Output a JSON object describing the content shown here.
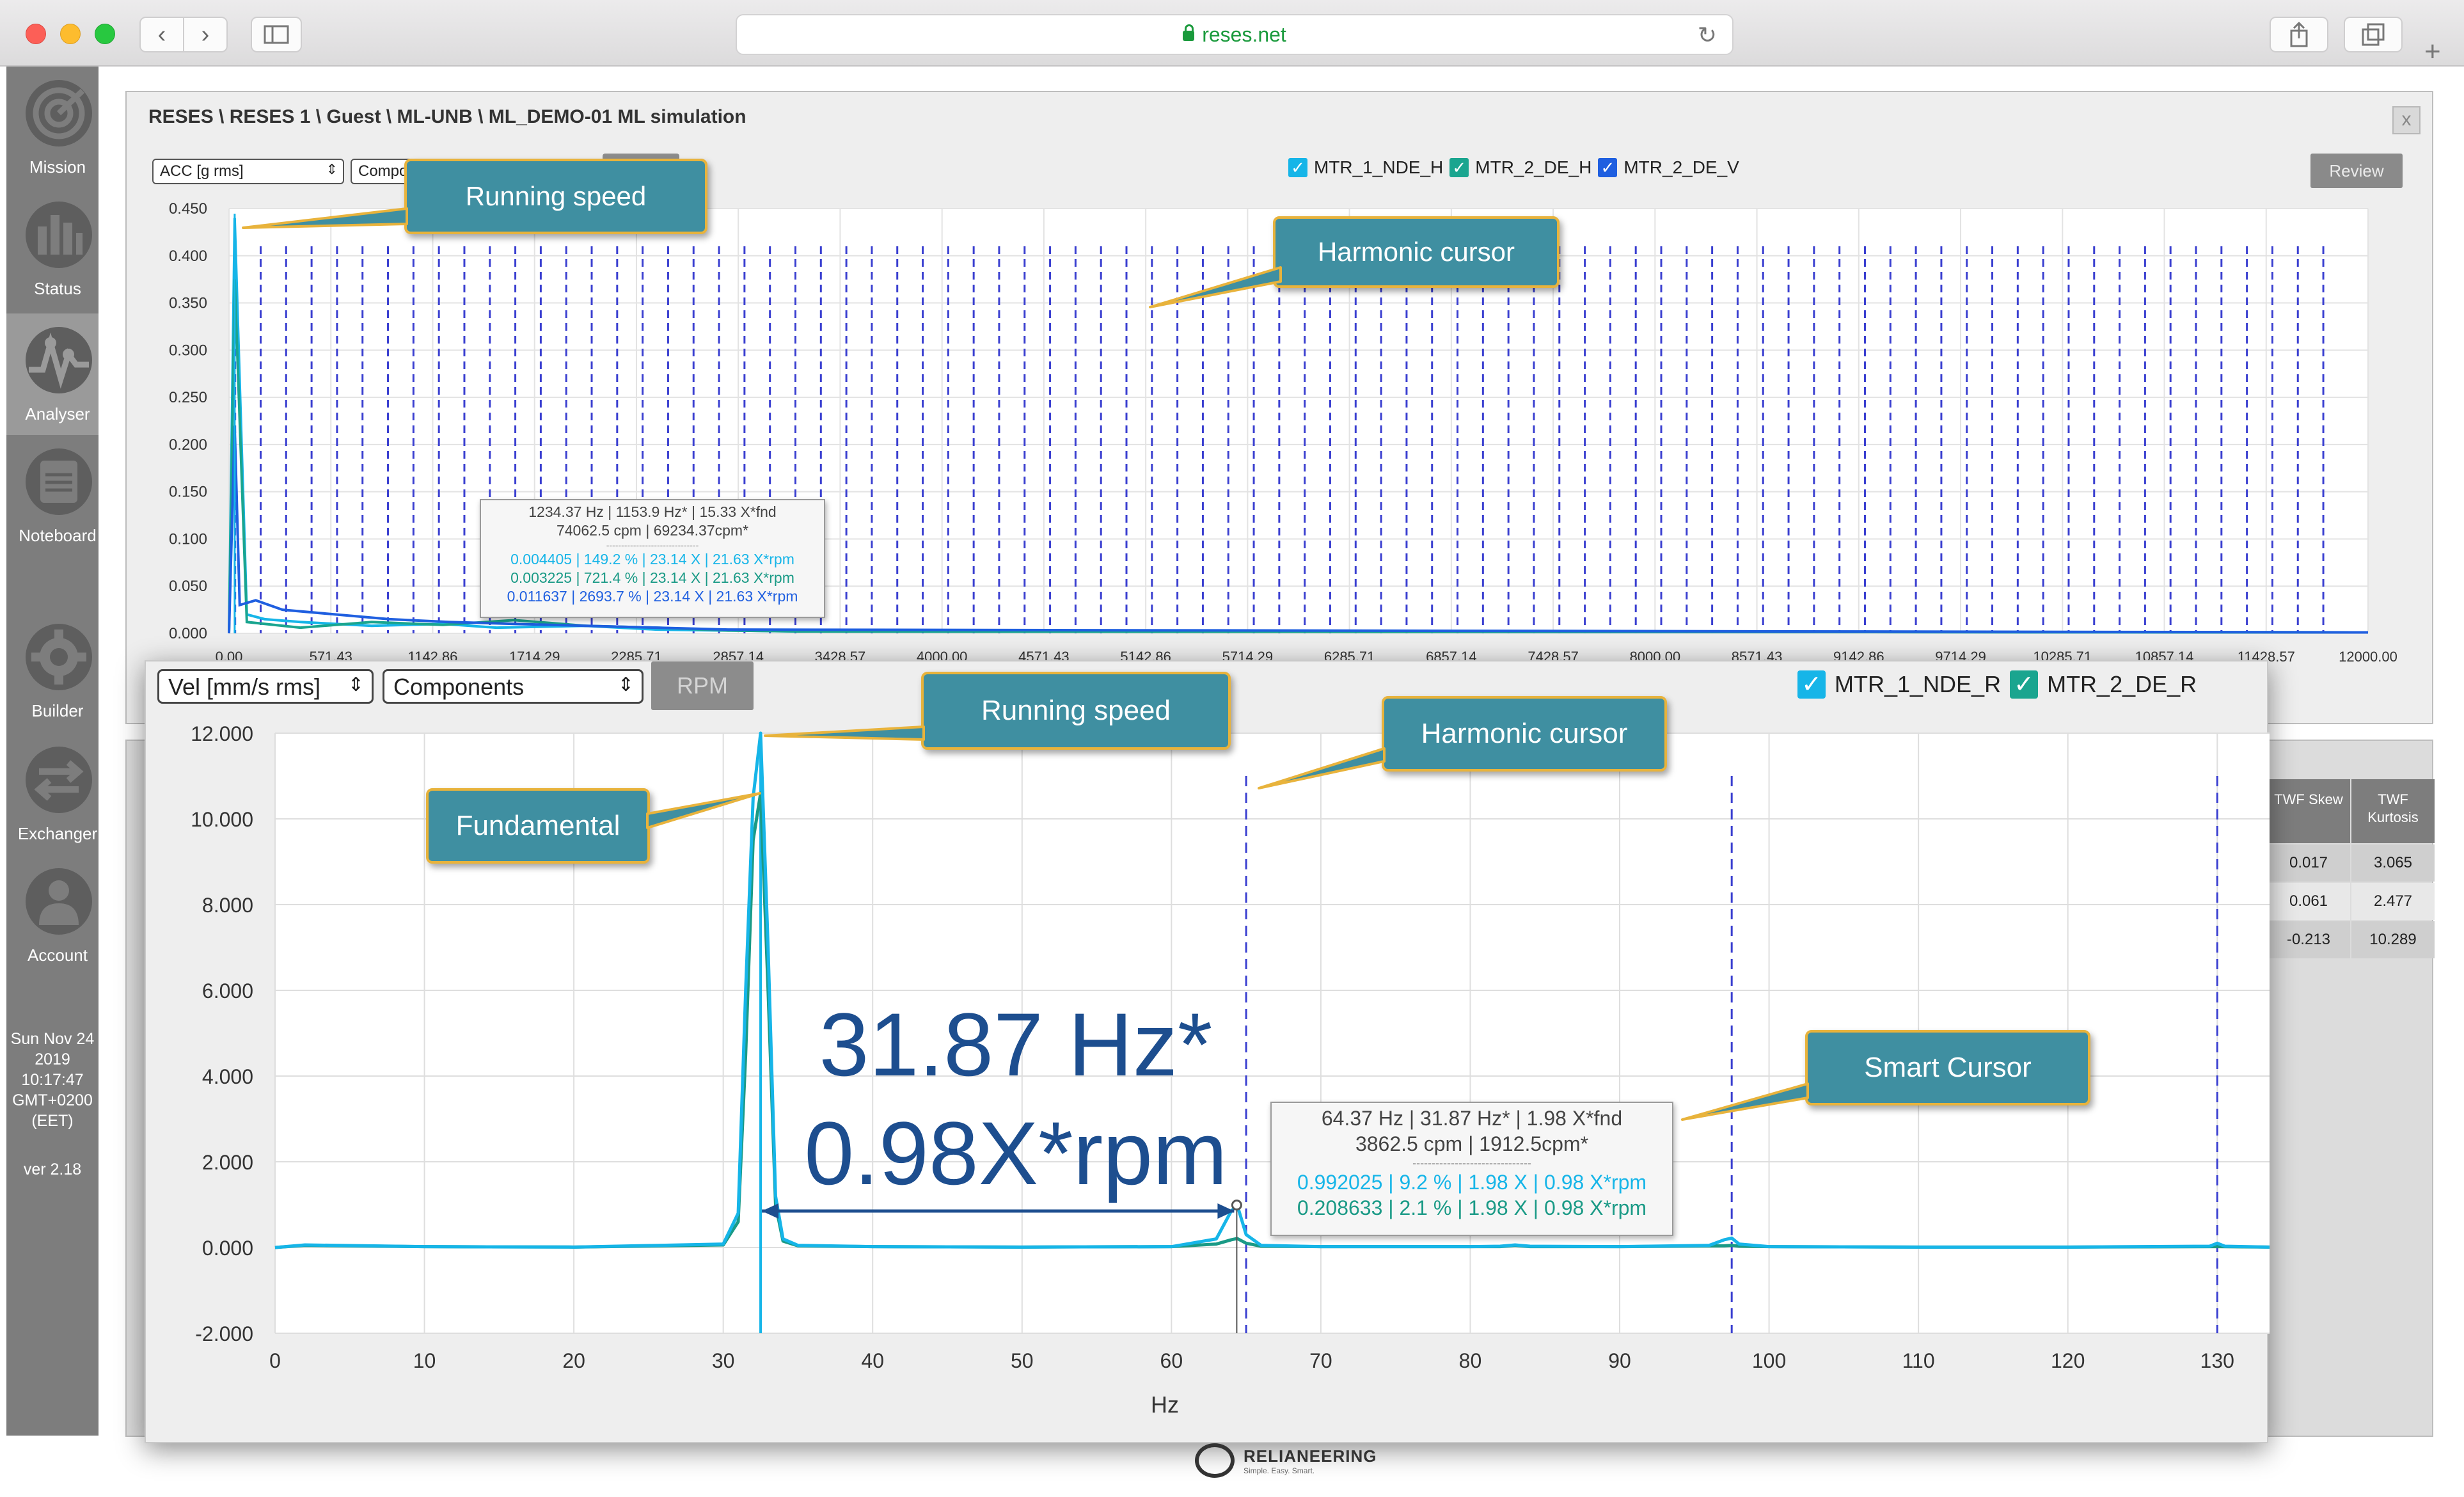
{
  "browser": {
    "url": "reses.net"
  },
  "sidebar": {
    "items": [
      {
        "label": "Mission",
        "icon": "target-icon"
      },
      {
        "label": "Status",
        "icon": "bar-chart-icon"
      },
      {
        "label": "Analyser",
        "icon": "waveform-icon",
        "active": true
      },
      {
        "label": "Noteboard",
        "icon": "notebook-icon"
      },
      {
        "label": "Builder",
        "icon": "gear-icon"
      },
      {
        "label": "Exchanger",
        "icon": "exchange-arrows-icon"
      },
      {
        "label": "Account",
        "icon": "user-icon"
      }
    ],
    "datetime": [
      "Sun Nov 24",
      "2019",
      "10:17:47",
      "GMT+0200",
      "(EET)"
    ],
    "version": "ver 2.18"
  },
  "background_panel": {
    "breadcrumb": "RESES \\ RESES 1 \\ Guest \\ ML-UNB \\ ML_DEMO-01 ML simulation",
    "close_label": "x",
    "unit_select": "ACC [g rms]",
    "mode_select": "Components",
    "rpm_label": "RPM",
    "review_label": "Review",
    "legend": [
      {
        "name": "MTR_1_NDE_H",
        "color": "#16b5e8"
      },
      {
        "name": "MTR_2_DE_H",
        "color": "#1aa58f"
      },
      {
        "name": "MTR_2_DE_V",
        "color": "#1f5fe0"
      }
    ],
    "tooltip": {
      "line1": "1234.37 Hz | 1153.9 Hz* | 15.33 X*fnd",
      "line2": "74062.5 cpm | 69234.37cpm*",
      "separator": "-------------------------------",
      "rows": [
        {
          "text": "0.004405 | 149.2 % | 23.14 X | 21.63 X*rpm",
          "color": "#16b5e8"
        },
        {
          "text": "0.003225 | 721.4 % | 23.14 X | 21.63 X*rpm",
          "color": "#1a9a86"
        },
        {
          "text": "0.011637 | 2693.7 % | 23.14 X | 21.63 X*rpm",
          "color": "#1f5fe0"
        }
      ]
    },
    "table": {
      "headers": [
        "TWF Skew",
        "TWF Kurtosis"
      ],
      "rows": [
        [
          "0.017",
          "3.065"
        ],
        [
          "0.061",
          "2.477"
        ],
        [
          "-0.213",
          "10.289"
        ]
      ]
    }
  },
  "foreground_panel": {
    "unit_select": "Vel [mm/s rms]",
    "mode_select": "Components",
    "rpm_label": "RPM",
    "legend": [
      {
        "name": "MTR_1_NDE_R",
        "color": "#16b5e8"
      },
      {
        "name": "MTR_2_DE_R",
        "color": "#1aa58f"
      }
    ],
    "tooltip": {
      "line1": "64.37 Hz | 31.87 Hz* | 1.98 X*fnd",
      "line2": "3862.5 cpm | 1912.5cpm*",
      "separator": "-------------------------------",
      "rows": [
        {
          "text": "0.992025 | 9.2 % | 1.98 X | 0.98 X*rpm",
          "color": "#16b5e8"
        },
        {
          "text": "0.208633 | 2.1 % | 1.98 X | 0.98 X*rpm",
          "color": "#1a9a86"
        }
      ]
    },
    "annotation": {
      "line1": "31.87 Hz*",
      "line2": "0.98X*rpm"
    }
  },
  "callouts": {
    "bg_running_speed": "Running speed",
    "bg_harmonic_cursor": "Harmonic cursor",
    "fg_running_speed": "Running speed",
    "fg_harmonic_cursor": "Harmonic cursor",
    "fundamental": "Fundamental",
    "smart_cursor": "Smart Cursor"
  },
  "footer": {
    "brand": "RELIANEERING",
    "tagline": "Simple. Easy. Smart."
  },
  "chart_data": [
    {
      "type": "line",
      "ylim": [
        0,
        0.45
      ],
      "xlim": [
        0,
        12000
      ],
      "y_ticks": [
        "0.000",
        "0.050",
        "0.100",
        "0.150",
        "0.200",
        "0.250",
        "0.300",
        "0.350",
        "0.400",
        "0.450"
      ],
      "x_ticks": [
        "0.00",
        "571.43",
        "1142.86",
        "1714.29",
        "2285.71",
        "2857.14",
        "3428.57",
        "4000.00",
        "4571.43",
        "5142.86",
        "5714.29",
        "6285.71",
        "6857.14",
        "7428.57",
        "8000.00",
        "8571.43",
        "9142.86",
        "9714.29",
        "10285.71",
        "10857.14",
        "11428.57",
        "12000.00"
      ],
      "running_speed_hz": 31.87,
      "harmonic_cursor_count": 84,
      "series": [
        {
          "name": "MTR_1_NDE_H",
          "color": "#16b5e8",
          "x": [
            0,
            31.87,
            100,
            200,
            400,
            800,
            1200,
            1500,
            2000,
            2400,
            2800,
            3200,
            12000
          ],
          "y": [
            0.0,
            0.44,
            0.02,
            0.015,
            0.012,
            0.008,
            0.01,
            0.006,
            0.008,
            0.004,
            0.003,
            0.002,
            0.001
          ]
        },
        {
          "name": "MTR_2_DE_H",
          "color": "#1aa58f",
          "x": [
            0,
            31.87,
            100,
            400,
            800,
            1200,
            1600,
            2000,
            2400,
            2800,
            3200,
            12000
          ],
          "y": [
            0.0,
            0.375,
            0.012,
            0.006,
            0.012,
            0.009,
            0.014,
            0.008,
            0.006,
            0.003,
            0.002,
            0.001
          ]
        },
        {
          "name": "MTR_2_DE_V",
          "color": "#1f5fe0",
          "x": [
            0,
            31.87,
            60,
            150,
            300,
            600,
            900,
            1234.37,
            1600,
            2000,
            2400,
            2800,
            12000
          ],
          "y": [
            0.0,
            0.22,
            0.03,
            0.035,
            0.025,
            0.02,
            0.015,
            0.012,
            0.01,
            0.008,
            0.006,
            0.004,
            0.001
          ]
        }
      ]
    },
    {
      "type": "line",
      "xlabel": "Hz",
      "xlim": [
        0,
        133.5
      ],
      "ylim": [
        -2,
        12
      ],
      "x_ticks": [
        "0",
        "10",
        "20",
        "30",
        "40",
        "50",
        "60",
        "70",
        "80",
        "90",
        "100",
        "110",
        "120",
        "130"
      ],
      "y_ticks": [
        "-2.000",
        "0.000",
        "2.000",
        "4.000",
        "6.000",
        "8.000",
        "10.000",
        "12.000"
      ],
      "running_speed_hz": 32.5,
      "harmonic_cursors_hz": [
        65.0,
        97.5,
        130.0
      ],
      "smart_cursor_hz": 64.37,
      "series": [
        {
          "name": "MTR_1_NDE_R",
          "color": "#16b5e8",
          "x": [
            0,
            2,
            10,
            20,
            30,
            31,
            31.5,
            32,
            32.5,
            33,
            33.5,
            34,
            35,
            40,
            50,
            60,
            63,
            64,
            64.4,
            65,
            66,
            70,
            80,
            82,
            83,
            84,
            90,
            96,
            97,
            97.5,
            98,
            100,
            110,
            120,
            129.5,
            130,
            130.5,
            133.5
          ],
          "y": [
            0.0,
            0.06,
            0.02,
            0.01,
            0.08,
            0.8,
            6.0,
            10.5,
            12.0,
            7.0,
            1.2,
            0.2,
            0.05,
            0.02,
            0.01,
            0.02,
            0.2,
            0.85,
            0.99,
            0.3,
            0.05,
            0.02,
            0.02,
            0.03,
            0.06,
            0.03,
            0.02,
            0.05,
            0.18,
            0.22,
            0.08,
            0.02,
            0.01,
            0.01,
            0.03,
            0.1,
            0.03,
            0.01
          ]
        },
        {
          "name": "MTR_2_DE_R",
          "color": "#1a9a86",
          "x": [
            0,
            2,
            10,
            20,
            30,
            31,
            31.5,
            32,
            32.5,
            33,
            33.5,
            34,
            35,
            40,
            50,
            60,
            63,
            64,
            64.4,
            65,
            66,
            70,
            80,
            82,
            83,
            84,
            90,
            97,
            97.5,
            98,
            100,
            110,
            120,
            130,
            133.5
          ],
          "y": [
            0.0,
            0.05,
            0.02,
            0.01,
            0.06,
            0.6,
            4.5,
            9.5,
            10.6,
            6.0,
            1.0,
            0.15,
            0.04,
            0.02,
            0.01,
            0.02,
            0.08,
            0.18,
            0.21,
            0.1,
            0.03,
            0.02,
            0.02,
            0.02,
            0.05,
            0.02,
            0.02,
            0.04,
            0.05,
            0.03,
            0.02,
            0.01,
            0.01,
            0.02,
            0.01
          ]
        }
      ]
    }
  ]
}
